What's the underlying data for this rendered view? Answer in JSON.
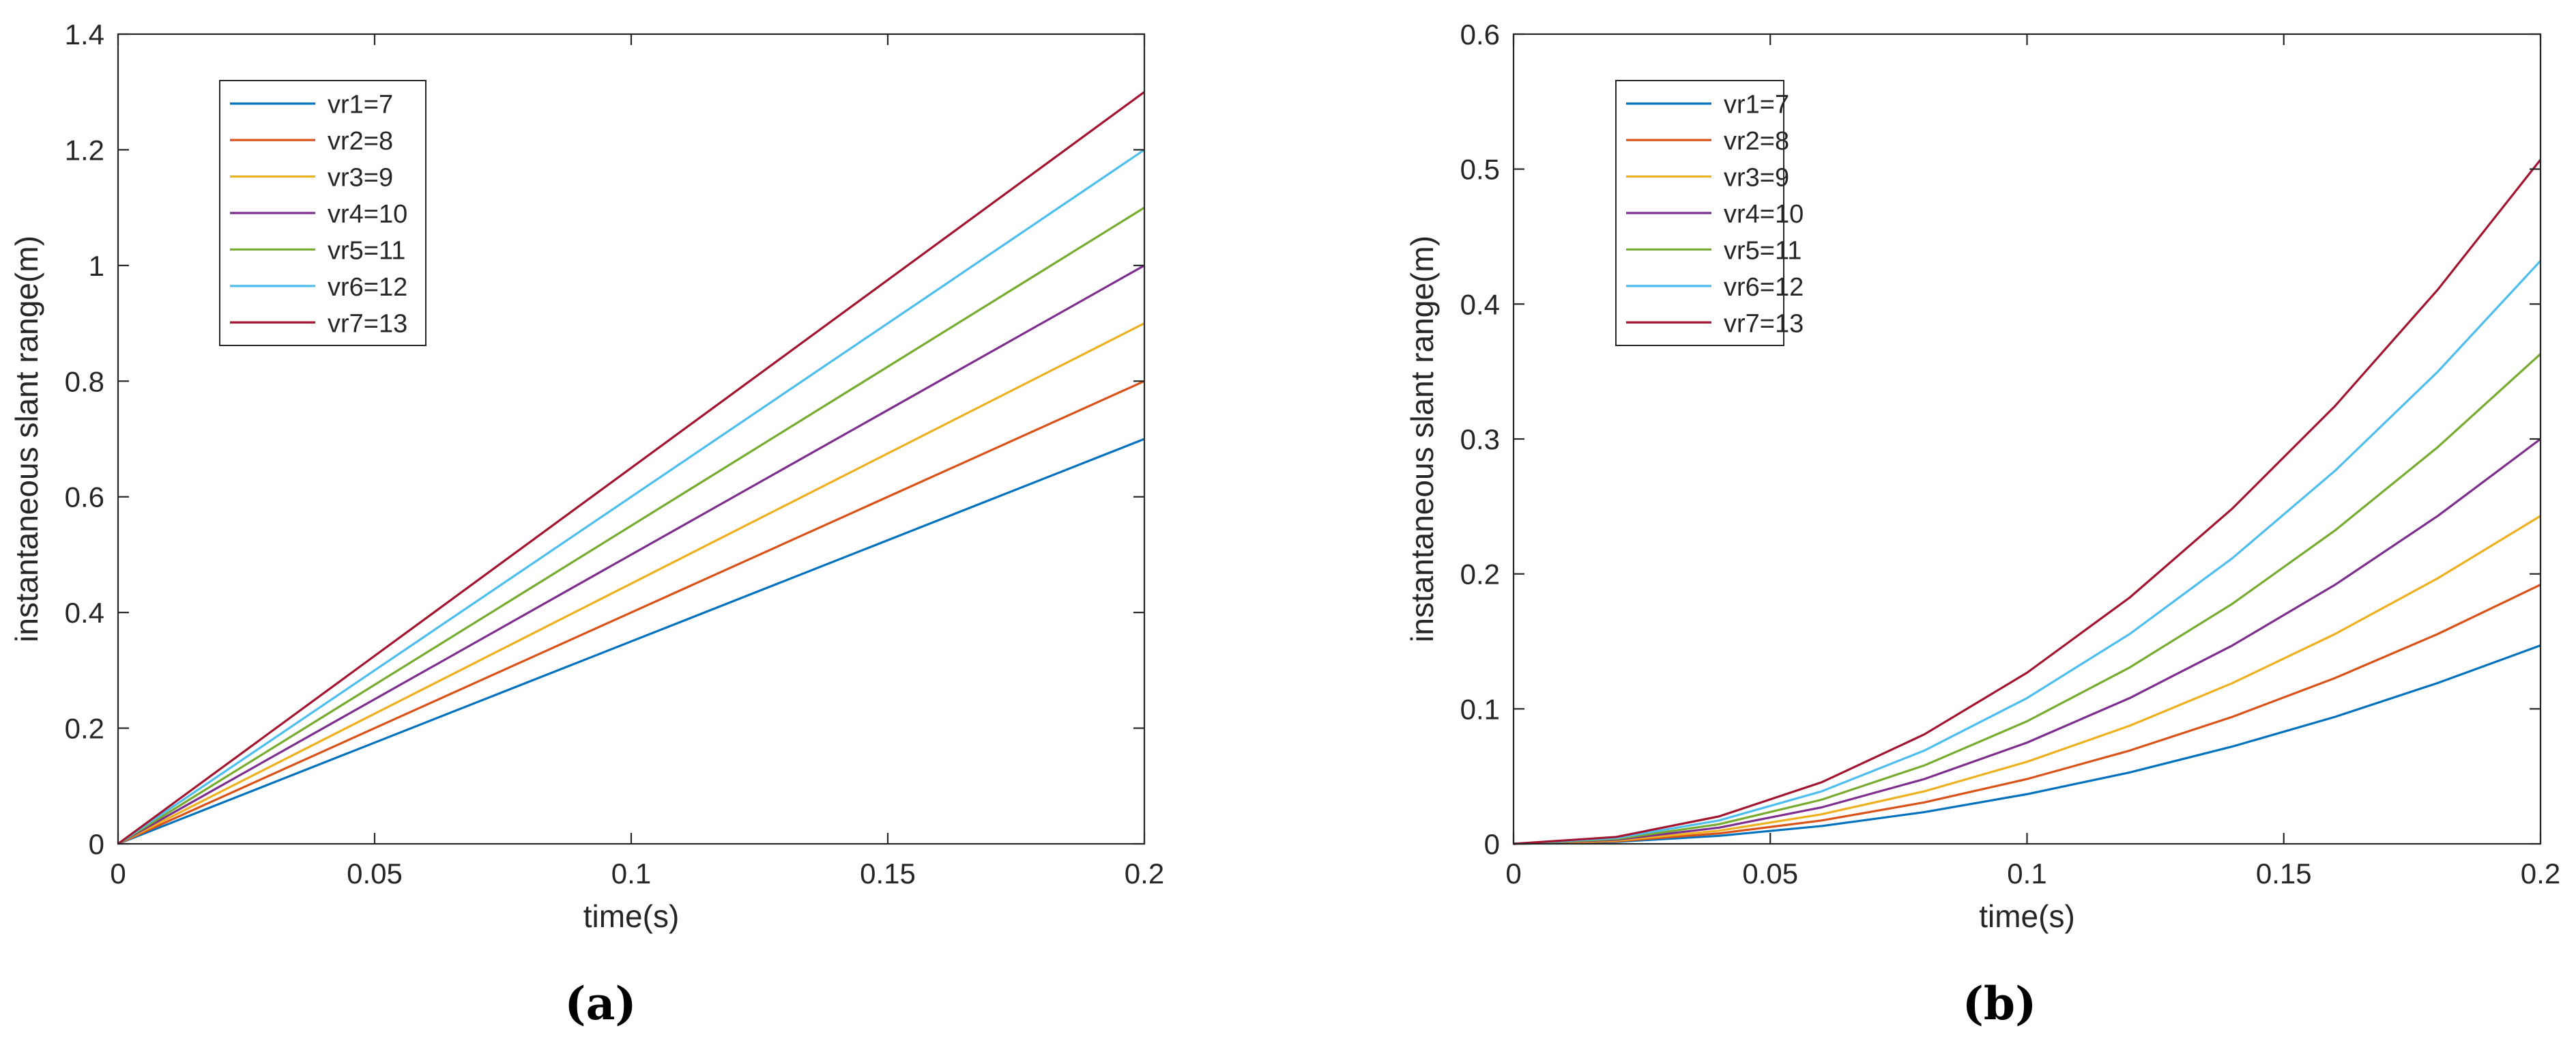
{
  "chart_data": [
    {
      "type": "line",
      "panel_label": "(a)",
      "xlabel": "time(s)",
      "ylabel": "instantaneous slant range(m)",
      "xlim": [
        0,
        0.2
      ],
      "ylim": [
        0,
        1.4
      ],
      "xticks": [
        0,
        0.05,
        0.1,
        0.15,
        0.2
      ],
      "xtick_labels": [
        "0",
        "0.05",
        "0.1",
        "0.15",
        "0.2"
      ],
      "yticks": [
        0,
        0.2,
        0.4,
        0.6,
        0.8,
        1.0,
        1.2,
        1.4
      ],
      "ytick_labels": [
        "0",
        "0.2",
        "0.4",
        "0.6",
        "0.8",
        "1",
        "1.2",
        "1.4"
      ],
      "legend_position": "top-left",
      "x": [
        0,
        0.2
      ],
      "series": [
        {
          "name": "vr1=7",
          "color": "#0072BD",
          "values": [
            0,
            0.7
          ]
        },
        {
          "name": "vr2=8",
          "color": "#D95319",
          "values": [
            0,
            0.8
          ]
        },
        {
          "name": "vr3=9",
          "color": "#EDB120",
          "values": [
            0,
            0.9
          ]
        },
        {
          "name": "vr4=10",
          "color": "#7E2F8E",
          "values": [
            0,
            1.0
          ]
        },
        {
          "name": "vr5=11",
          "color": "#77AC30",
          "values": [
            0,
            1.1
          ]
        },
        {
          "name": "vr6=12",
          "color": "#4DBEEE",
          "values": [
            0,
            1.2
          ]
        },
        {
          "name": "vr7=13",
          "color": "#A2142F",
          "values": [
            0,
            1.3
          ]
        }
      ]
    },
    {
      "type": "line",
      "panel_label": "(b)",
      "xlabel": "time(s)",
      "ylabel": "instantaneous slant range(m)",
      "xlim": [
        0,
        0.2
      ],
      "ylim": [
        0,
        0.6
      ],
      "xticks": [
        0,
        0.05,
        0.1,
        0.15,
        0.2
      ],
      "xtick_labels": [
        "0",
        "0.05",
        "0.1",
        "0.15",
        "0.2"
      ],
      "yticks": [
        0,
        0.1,
        0.2,
        0.3,
        0.4,
        0.5,
        0.6
      ],
      "ytick_labels": [
        "0",
        "0.1",
        "0.2",
        "0.3",
        "0.4",
        "0.5",
        "0.6"
      ],
      "legend_position": "top-left",
      "x": [
        0,
        0.02,
        0.04,
        0.06,
        0.08,
        0.1,
        0.12,
        0.14,
        0.16,
        0.18,
        0.2
      ],
      "series": [
        {
          "name": "vr1=7",
          "color": "#0072BD",
          "values": [
            0,
            0.0015,
            0.0059,
            0.0132,
            0.0235,
            0.0368,
            0.0529,
            0.0721,
            0.0941,
            0.1192,
            0.147
          ]
        },
        {
          "name": "vr2=8",
          "color": "#D95319",
          "values": [
            0,
            0.0019,
            0.0077,
            0.0173,
            0.0307,
            0.048,
            0.0691,
            0.0941,
            0.1229,
            0.1555,
            0.192
          ]
        },
        {
          "name": "vr3=9",
          "color": "#EDB120",
          "values": [
            0,
            0.0024,
            0.0097,
            0.0219,
            0.0389,
            0.0608,
            0.0875,
            0.1191,
            0.1555,
            0.1968,
            0.243
          ]
        },
        {
          "name": "vr4=10",
          "color": "#7E2F8E",
          "values": [
            0,
            0.003,
            0.012,
            0.027,
            0.048,
            0.075,
            0.108,
            0.147,
            0.192,
            0.243,
            0.3
          ]
        },
        {
          "name": "vr5=11",
          "color": "#77AC30",
          "values": [
            0,
            0.0036,
            0.0145,
            0.0327,
            0.0581,
            0.0908,
            0.1307,
            0.1779,
            0.2323,
            0.294,
            0.363
          ]
        },
        {
          "name": "vr6=12",
          "color": "#4DBEEE",
          "values": [
            0,
            0.0043,
            0.0173,
            0.0389,
            0.0691,
            0.108,
            0.1555,
            0.2117,
            0.2765,
            0.3499,
            0.432
          ]
        },
        {
          "name": "vr7=13",
          "color": "#A2142F",
          "values": [
            0,
            0.0051,
            0.0203,
            0.0456,
            0.0811,
            0.1268,
            0.1825,
            0.2485,
            0.3245,
            0.4107,
            0.507
          ]
        }
      ]
    }
  ]
}
